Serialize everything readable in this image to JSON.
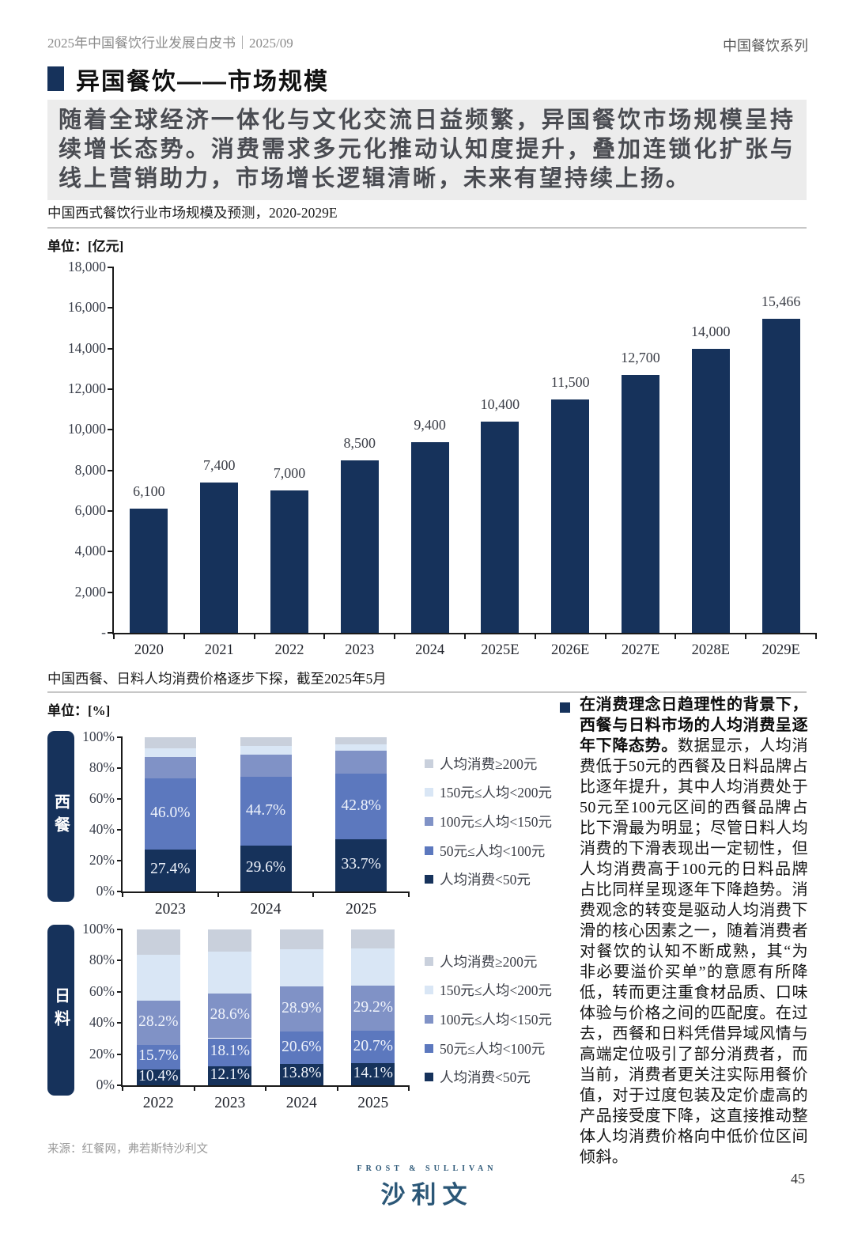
{
  "header": {
    "left": "2025年中国餐饮行业发展白皮书｜2025/09",
    "right": "中国餐饮系列"
  },
  "title": {
    "text": "异国餐饮——市场规模"
  },
  "intro": "随着全球经济一体化与文化交流日益频繁，异国餐饮市场规模呈持续增长态势。消费需求多元化推动认知度提升，叠加连锁化扩张与线上营销助力，市场增长逻辑清晰，未来有望持续上扬。",
  "colors": {
    "navy": "#16325B",
    "blue_50_100": "#5C78BE",
    "slate_100_150": "#8092C6",
    "pale_150_200": "#D9E6F5",
    "gray_200": "#C9D0DC",
    "logo": "#2B5777",
    "intro_bg": "#ECECEC"
  },
  "chart_data": [
    {
      "type": "bar",
      "title": "中国西式餐饮行业市场规模及预测，2020-2029E",
      "unit": "单位：[亿元]",
      "categories": [
        "2020",
        "2021",
        "2022",
        "2023",
        "2024",
        "2025E",
        "2026E",
        "2027E",
        "2028E",
        "2029E"
      ],
      "values": [
        6100,
        7400,
        7000,
        8500,
        9400,
        10400,
        11500,
        12700,
        14000,
        15466
      ],
      "value_labels": [
        "6,100",
        "7,400",
        "7,000",
        "8,500",
        "9,400",
        "10,400",
        "11,500",
        "12,700",
        "14,000",
        "15,466"
      ],
      "ylim": [
        0,
        18000
      ],
      "ytick_values": [
        0,
        2000,
        4000,
        6000,
        8000,
        10000,
        12000,
        14000,
        16000,
        18000
      ],
      "ytick_labels": [
        "-",
        "2,000",
        "4,000",
        "6,000",
        "8,000",
        "10,000",
        "12,000",
        "14,000",
        "16,000",
        "18,000"
      ],
      "bar_color": "#16325B",
      "grid": false,
      "legend_position": "none"
    },
    {
      "type": "stacked-bar",
      "title": "中国西餐、日料人均消费价格逐步下探，截至2025年5月",
      "unit": "单位：[%]",
      "group_label": "西餐",
      "categories": [
        "2023",
        "2024",
        "2025"
      ],
      "ylim": [
        0,
        100
      ],
      "ytick_labels": [
        "0%",
        "20%",
        "40%",
        "60%",
        "80%",
        "100%"
      ],
      "series": [
        {
          "name": "人均消费<50元",
          "color": "#16325B",
          "values": [
            27.4,
            29.6,
            33.7
          ],
          "labels": [
            "27.4%",
            "29.6%",
            "33.7%"
          ]
        },
        {
          "name": "50元≤人均<100元",
          "color": "#5C78BE",
          "values": [
            46.0,
            44.7,
            42.8
          ],
          "labels": [
            "46.0%",
            "44.7%",
            "42.8%"
          ]
        },
        {
          "name": "100元≤人均<150元",
          "color": "#8092C6",
          "values": [
            14.0,
            14.4,
            14.7
          ],
          "labels": []
        },
        {
          "name": "150元≤人均<200元",
          "color": "#D9E6F5",
          "values": [
            5.4,
            5.8,
            4.2
          ],
          "labels": []
        },
        {
          "name": "人均消费≥200元",
          "color": "#C9D0DC",
          "values": [
            7.2,
            5.5,
            4.6
          ],
          "labels": []
        }
      ]
    },
    {
      "type": "stacked-bar",
      "title": "中国西餐、日料人均消费价格逐步下探，截至2025年5月",
      "unit": "单位：[%]",
      "group_label": "日料",
      "categories": [
        "2022",
        "2023",
        "2024",
        "2025"
      ],
      "ylim": [
        0,
        100
      ],
      "ytick_labels": [
        "0%",
        "20%",
        "40%",
        "60%",
        "80%",
        "100%"
      ],
      "series": [
        {
          "name": "人均消费<50元",
          "color": "#16325B",
          "values": [
            10.4,
            12.1,
            13.8,
            14.1
          ],
          "labels": [
            "10.4%",
            "12.1%",
            "13.8%",
            "14.1%"
          ]
        },
        {
          "name": "50元≤人均<100元",
          "color": "#5C78BE",
          "values": [
            15.7,
            18.1,
            20.6,
            20.7
          ],
          "labels": [
            "15.7%",
            "18.1%",
            "20.6%",
            "20.7%"
          ]
        },
        {
          "name": "100元≤人均<150元",
          "color": "#8092C6",
          "values": [
            28.2,
            28.6,
            28.9,
            29.2
          ],
          "labels": [
            "28.2%",
            "28.6%",
            "28.9%",
            "29.2%"
          ]
        },
        {
          "name": "150元≤人均<200元",
          "color": "#D9E6F5",
          "values": [
            29.4,
            27.1,
            24.0,
            23.9
          ],
          "labels": []
        },
        {
          "name": "人均消费≥200元",
          "color": "#C9D0DC",
          "values": [
            16.3,
            14.1,
            12.7,
            12.1
          ],
          "labels": []
        }
      ]
    }
  ],
  "legend": {
    "items": [
      {
        "label": "人均消费≥200元",
        "color": "#C9D0DC"
      },
      {
        "label": "150元≤人均<200元",
        "color": "#D9E6F5"
      },
      {
        "label": "100元≤人均<150元",
        "color": "#8092C6"
      },
      {
        "label": "50元≤人均<100元",
        "color": "#5C78BE"
      },
      {
        "label": "人均消费<50元",
        "color": "#16325B"
      }
    ]
  },
  "right_note": {
    "lead": "在消费理念日趋理性的背景下，西餐与日料市场的人均消费呈逐年下降态势。",
    "body": "数据显示，人均消费低于50元的西餐及日料品牌占比逐年提升，其中人均消费处于50元至100元区间的西餐品牌占比下滑最为明显；尽管日料人均消费的下滑表现出一定韧性，但人均消费高于100元的日料品牌占比同样呈现逐年下降趋势。消费观念的转变是驱动人均消费下滑的核心因素之一，随着消费者对餐饮的认知不断成熟，其“为非必要溢价买单”的意愿有所降低，转而更注重食材品质、口味体验与价格之间的匹配度。在过去，西餐和日料凭借异域风情与高端定位吸引了部分消费者，而当前，消费者更关注实际用餐价值，对于过度包装及定价虚高的产品接受度下降，这直接推动整体人均消费价格向中低价位区间倾斜。"
  },
  "footer": {
    "source": "来源：红餐网，弗若斯特沙利文",
    "logo_en": "FROST & SULLIVAN",
    "logo_cn": "沙利文",
    "page_number": "45"
  }
}
